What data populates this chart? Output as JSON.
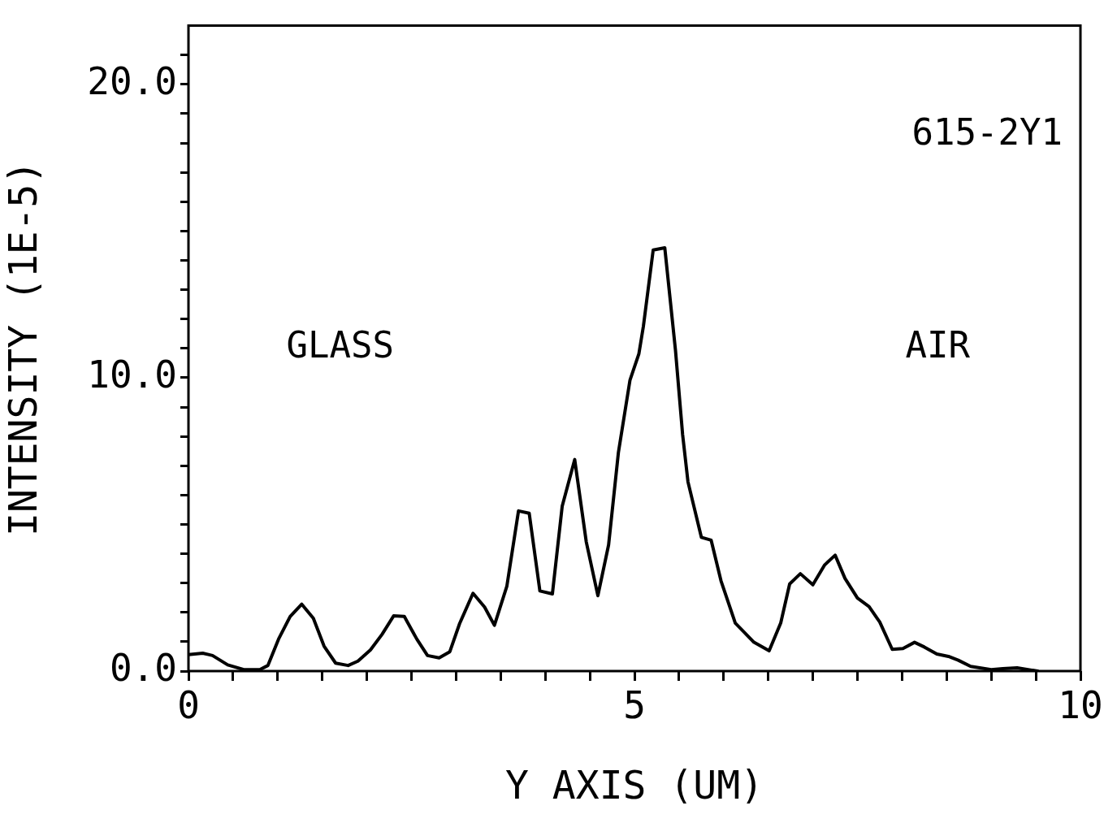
{
  "chart_data": {
    "type": "line",
    "xlabel": "Y AXIS (UM)",
    "ylabel": "INTENSITY (1E-5)",
    "annotations": [
      "615-2Y1",
      "GLASS",
      "AIR"
    ],
    "xlim": [
      0,
      10
    ],
    "ylim": [
      0,
      22
    ],
    "xticks": [
      0,
      {
        "value": 0.5,
        "label": null
      },
      {
        "value": 1,
        "label": null
      },
      {
        "value": 1.5,
        "label": null
      },
      {
        "value": 2,
        "label": null
      },
      {
        "value": 2.5,
        "label": null
      },
      {
        "value": 3,
        "label": null
      },
      {
        "value": 3.5,
        "label": null
      },
      {
        "value": 4,
        "label": null
      },
      {
        "value": 4.5,
        "label": null
      },
      5,
      {
        "value": 5.5,
        "label": null
      },
      {
        "value": 6,
        "label": null
      },
      {
        "value": 6.5,
        "label": null
      },
      {
        "value": 7,
        "label": null
      },
      {
        "value": 7.5,
        "label": null
      },
      {
        "value": 8,
        "label": null
      },
      {
        "value": 8.5,
        "label": null
      },
      {
        "value": 9,
        "label": null
      },
      {
        "value": 9.5,
        "label": null
      },
      10
    ],
    "yticks": [
      {
        "value": 0,
        "label": "0.0"
      },
      {
        "value": 1,
        "label": null
      },
      {
        "value": 2,
        "label": null
      },
      {
        "value": 3,
        "label": null
      },
      {
        "value": 4,
        "label": null
      },
      {
        "value": 5,
        "label": null
      },
      {
        "value": 6,
        "label": null
      },
      {
        "value": 7,
        "label": null
      },
      {
        "value": 8,
        "label": null
      },
      {
        "value": 9,
        "label": null
      },
      {
        "value": 10,
        "label": "10.0"
      },
      {
        "value": 11,
        "label": null
      },
      {
        "value": 12,
        "label": null
      },
      {
        "value": 13,
        "label": null
      },
      {
        "value": 14,
        "label": null
      },
      {
        "value": 15,
        "label": null
      },
      {
        "value": 16,
        "label": null
      },
      {
        "value": 17,
        "label": null
      },
      {
        "value": 18,
        "label": null
      },
      {
        "value": 19,
        "label": null
      },
      {
        "value": 20,
        "label": "20.0"
      },
      {
        "value": 21,
        "label": null
      }
    ],
    "grid": false,
    "legend": false,
    "marker": "none",
    "line_style": "solid",
    "series": [
      {
        "color": "#000000",
        "x": [
          0,
          0.16,
          0.27,
          0.44,
          0.62,
          0.8,
          0.89,
          1.01,
          1.14,
          1.27,
          1.4,
          1.52,
          1.65,
          1.79,
          1.9,
          2.04,
          2.17,
          2.3,
          2.42,
          2.56,
          2.68,
          2.81,
          2.93,
          3.04,
          3.19,
          3.32,
          3.43,
          3.57,
          3.7,
          3.82,
          3.94,
          4.08,
          4.19,
          4.33,
          4.46,
          4.59,
          4.71,
          4.82,
          4.95,
          5.05,
          5.1,
          5.21,
          5.34,
          5.46,
          5.54,
          5.6,
          5.75,
          5.86,
          5.97,
          6.13,
          6.34,
          6.51,
          6.64,
          6.74,
          6.86,
          7,
          7.13,
          7.25,
          7.36,
          7.5,
          7.63,
          7.75,
          7.89,
          8.01,
          8.14,
          8.25,
          8.39,
          8.52,
          8.63,
          8.77,
          9,
          9.13,
          9.29,
          9.52
        ],
        "values": [
          0.56,
          0.61,
          0.53,
          0.21,
          0.05,
          0.05,
          0.19,
          1.09,
          1.86,
          2.28,
          1.8,
          0.85,
          0.27,
          0.19,
          0.34,
          0.72,
          1.25,
          1.88,
          1.86,
          1.09,
          0.53,
          0.45,
          0.66,
          1.62,
          2.65,
          2.18,
          1.56,
          2.9,
          5.46,
          5.38,
          2.73,
          2.63,
          5.62,
          7.21,
          4.4,
          2.57,
          4.3,
          7.45,
          9.92,
          10.82,
          11.75,
          14.35,
          14.43,
          10.93,
          8.06,
          6.45,
          4.56,
          4.46,
          3.08,
          1.64,
          0.98,
          0.69,
          1.64,
          2.97,
          3.32,
          2.94,
          3.61,
          3.95,
          3.16,
          2.49,
          2.2,
          1.67,
          0.74,
          0.77,
          0.98,
          0.82,
          0.58,
          0.5,
          0.37,
          0.16,
          0.05,
          0.08,
          0.11,
          0
        ]
      }
    ]
  }
}
